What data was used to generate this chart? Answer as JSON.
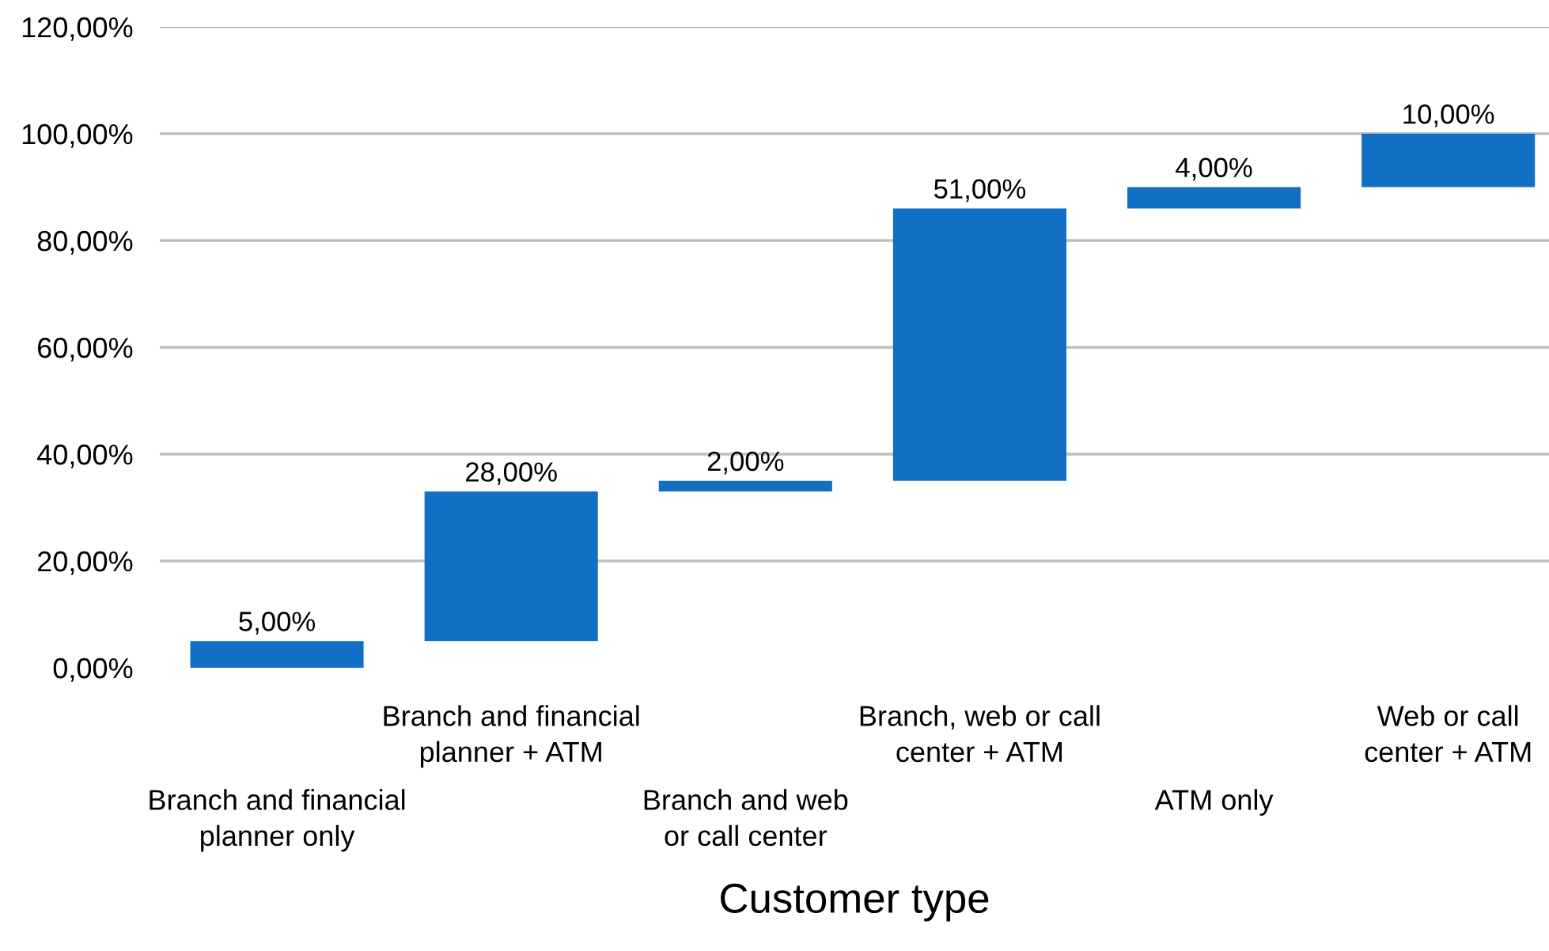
{
  "chart_data": {
    "type": "bar",
    "xlabel": "Customer type",
    "categories": [
      "Branch and financial\nplanner only",
      "Branch and financial\nplanner + ATM",
      "Branch and web\nor call center",
      "Branch, web or call\ncenter + ATM",
      "ATM only",
      "Web or call\ncenter + ATM"
    ],
    "values": [
      5,
      28,
      2,
      51,
      4,
      10
    ],
    "base": [
      0,
      5,
      33,
      35,
      86,
      90
    ],
    "value_labels": [
      "5,00%",
      "28,00%",
      "2,00%",
      "51,00%",
      "4,00%",
      "10,00%"
    ],
    "color": "#1170c4",
    "ylim": [
      0,
      120
    ],
    "yticks": [
      {
        "value": 0,
        "label": "0,00%"
      },
      {
        "value": 20,
        "label": "20,00%"
      },
      {
        "value": 40,
        "label": "40,00%"
      },
      {
        "value": 60,
        "label": "60,00%"
      },
      {
        "value": 80,
        "label": "80,00%"
      },
      {
        "value": 100,
        "label": "100,00%"
      },
      {
        "value": 120,
        "label": "120,00%"
      }
    ],
    "grid": "y"
  }
}
